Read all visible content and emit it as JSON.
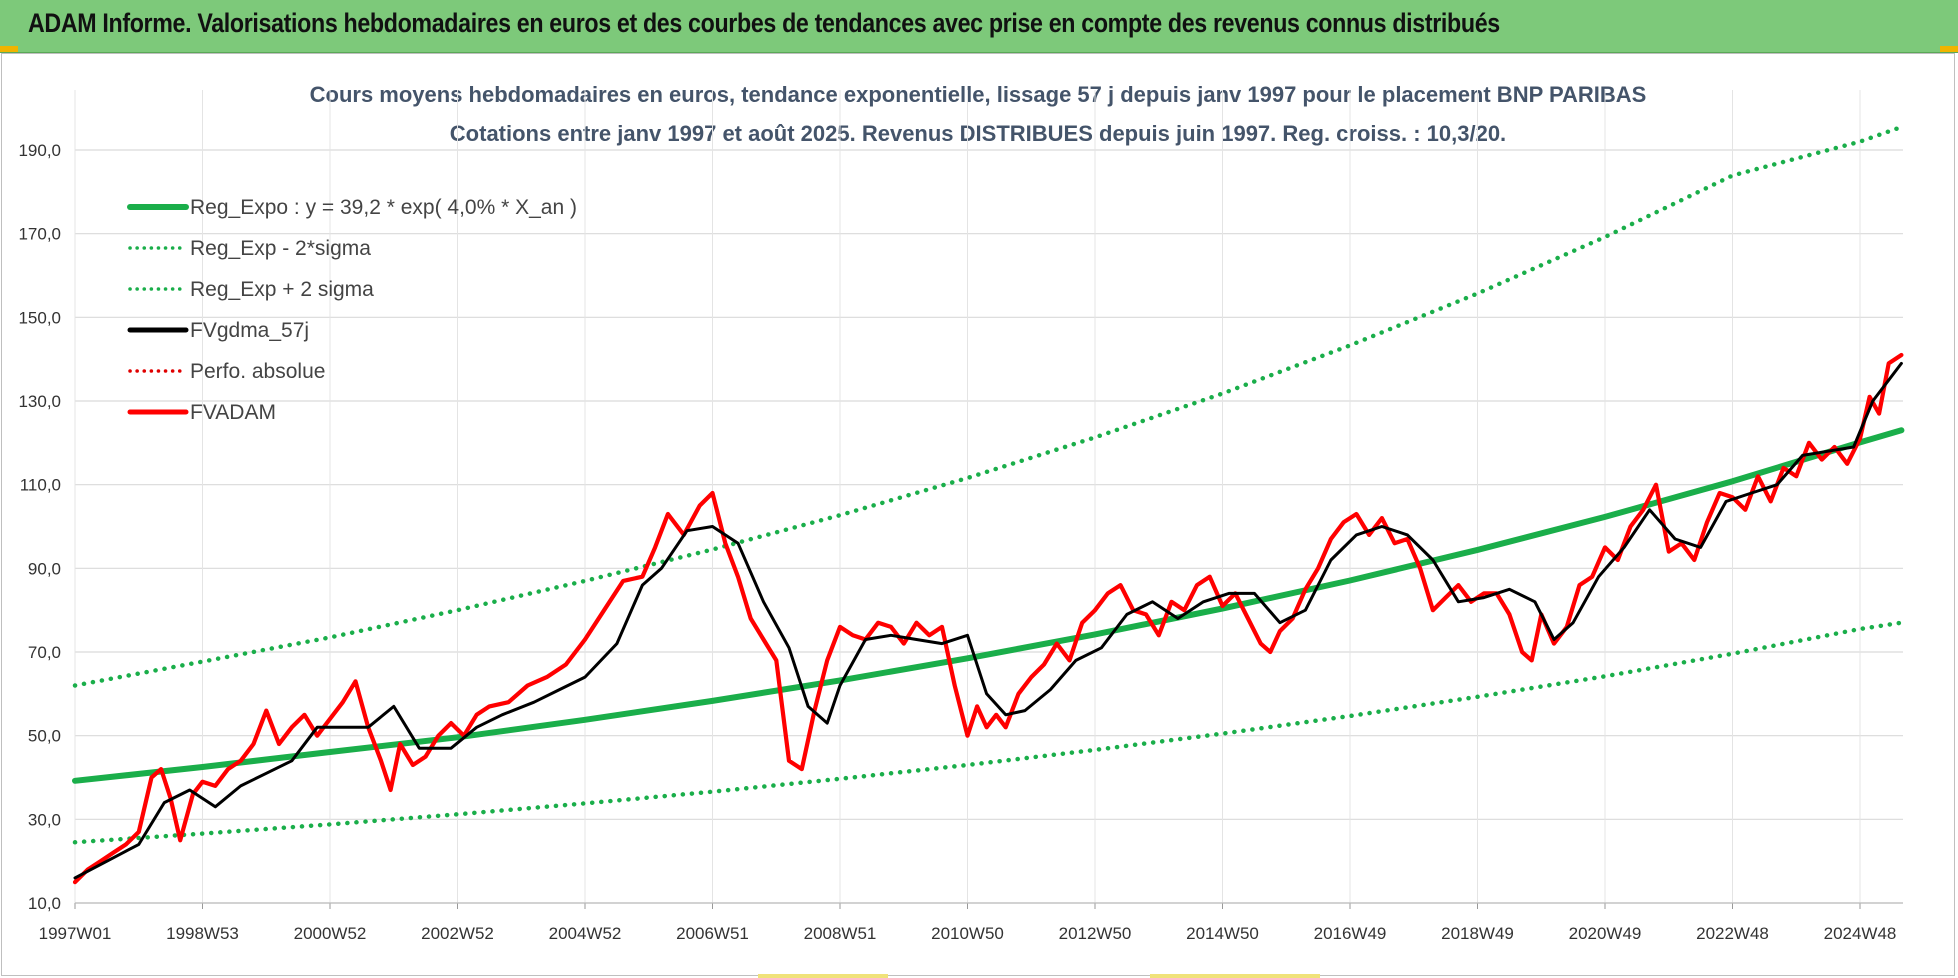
{
  "header": {
    "title": "ADAM Informe. Valorisations hebdomadaires en euros et des courbes de tendances avec prise en compte des revenus connus distribués",
    "band_color": "#7dc97a"
  },
  "chart_data": {
    "type": "line",
    "title": "Cours moyens hebdomadaires en euros, tendance exponentielle, lissage 57 j depuis janv 1997 pour le placement BNP PARIBAS",
    "subtitle": "Cotations entre janv 1997 et août 2025.  Revenus DISTRIBUES depuis juin 1997.  Reg. croiss. : 10,3/20.",
    "xlabel": "",
    "ylabel": "",
    "xlim": [
      1997.0,
      2025.65
    ],
    "ylim": [
      10,
      196
    ],
    "yticks": [
      10,
      30,
      50,
      70,
      90,
      110,
      130,
      150,
      170,
      190
    ],
    "ytick_labels": [
      "10,0",
      "30,0",
      "50,0",
      "70,0",
      "90,0",
      "110,0",
      "130,0",
      "150,0",
      "170,0",
      "190,0"
    ],
    "xticks": [
      1997.0,
      1999.0,
      2001.0,
      2003.0,
      2005.0,
      2007.0,
      2009.0,
      2011.0,
      2013.0,
      2015.0,
      2017.0,
      2019.0,
      2021.0,
      2023.0,
      2025.0
    ],
    "xtick_labels": [
      "1997W01",
      "1998W53",
      "2000W52",
      "2002W52",
      "2004W52",
      "2006W51",
      "2008W51",
      "2010W50",
      "2012W50",
      "2014W50",
      "2016W49",
      "2018W49",
      "2020W49",
      "2022W48",
      "2024W48"
    ],
    "grid": true,
    "legend_position": "top-left",
    "series": [
      {
        "name": "Reg_Expo : y = 39,2 * exp( 4,0% *  X_an )",
        "color": "#1aae4a",
        "style": "solid",
        "x": [
          1997.0,
          1999.0,
          2001.0,
          2003.0,
          2005.0,
          2007.0,
          2009.0,
          2011.0,
          2013.0,
          2015.0,
          2017.0,
          2019.0,
          2021.0,
          2023.0,
          2025.0,
          2025.65
        ],
        "values": [
          39.2,
          42.5,
          46.1,
          49.6,
          53.8,
          58.3,
          63.2,
          68.5,
          74.2,
          80.4,
          87.1,
          94.4,
          102.3,
          110.8,
          120.1,
          123.0
        ]
      },
      {
        "name": "Reg_Exp - 2*sigma",
        "color": "#1aae4a",
        "style": "dotted",
        "x": [
          1997.0,
          1999.0,
          2001.0,
          2003.0,
          2005.0,
          2007.0,
          2009.0,
          2011.0,
          2013.0,
          2015.0,
          2017.0,
          2019.0,
          2021.0,
          2023.0,
          2025.0,
          2025.65
        ],
        "values": [
          24.5,
          26.6,
          28.8,
          31.2,
          33.8,
          36.6,
          39.7,
          43.0,
          46.6,
          50.5,
          54.7,
          59.3,
          64.2,
          69.6,
          75.5,
          77.0
        ]
      },
      {
        "name": "Reg_Exp + 2 sigma",
        "color": "#1aae4a",
        "style": "dotted",
        "x": [
          1997.0,
          1999.0,
          2001.0,
          2003.0,
          2005.0,
          2007.0,
          2009.0,
          2011.0,
          2013.0,
          2015.0,
          2017.0,
          2019.0,
          2021.0,
          2023.0,
          2025.0,
          2025.65
        ],
        "values": [
          62.0,
          67.7,
          73.5,
          80.0,
          87.0,
          94.5,
          102.7,
          111.6,
          121.3,
          131.8,
          143.3,
          155.7,
          169.2,
          183.9,
          192.0,
          195.5
        ]
      },
      {
        "name": "FVgdma_57j",
        "color": "#000000",
        "style": "solid",
        "x": [
          1997.0,
          1997.5,
          1998.0,
          1998.4,
          1998.8,
          1999.2,
          1999.6,
          2000.0,
          2000.4,
          2000.8,
          2001.2,
          2001.6,
          2002.0,
          2002.4,
          2002.9,
          2003.3,
          2003.7,
          2004.2,
          2004.6,
          2005.0,
          2005.5,
          2005.9,
          2006.2,
          2006.6,
          2007.0,
          2007.4,
          2007.8,
          2008.2,
          2008.5,
          2008.8,
          2009.0,
          2009.4,
          2009.8,
          2010.2,
          2010.6,
          2011.0,
          2011.3,
          2011.6,
          2011.9,
          2012.3,
          2012.7,
          2013.1,
          2013.5,
          2013.9,
          2014.3,
          2014.7,
          2015.1,
          2015.5,
          2015.9,
          2016.3,
          2016.7,
          2017.1,
          2017.5,
          2017.9,
          2018.3,
          2018.7,
          2019.1,
          2019.5,
          2019.9,
          2020.2,
          2020.5,
          2020.9,
          2021.3,
          2021.7,
          2022.1,
          2022.5,
          2022.9,
          2023.3,
          2023.7,
          2024.1,
          2024.5,
          2024.9,
          2025.2,
          2025.65
        ],
        "values": [
          16.0,
          20.0,
          24.0,
          34.0,
          37.0,
          33.0,
          38.0,
          41.0,
          44.0,
          52.0,
          52.0,
          52.0,
          57.0,
          47.0,
          47.0,
          52.0,
          55.0,
          58.0,
          61.0,
          64.0,
          72.0,
          86.0,
          90.0,
          99.0,
          100.0,
          96.0,
          82.0,
          71.0,
          57.0,
          53.0,
          62.0,
          73.0,
          74.0,
          73.0,
          72.0,
          74.0,
          60.0,
          55.0,
          56.0,
          61.0,
          68.0,
          71.0,
          79.0,
          82.0,
          78.0,
          82.0,
          84.0,
          84.0,
          77.0,
          80.0,
          92.0,
          98.0,
          100.0,
          98.0,
          92.0,
          82.0,
          83.0,
          85.0,
          82.0,
          73.0,
          77.0,
          88.0,
          95.0,
          104.0,
          97.0,
          95.0,
          106.0,
          108.0,
          110.0,
          117.0,
          118.0,
          119.0,
          130.0,
          139.0
        ]
      },
      {
        "name": "Perfo. absolue",
        "color": "#e00000",
        "style": "dotted",
        "x": [],
        "values": []
      },
      {
        "name": "FVADAM",
        "color": "#ff0000",
        "style": "solid",
        "x": [
          1997.0,
          1997.2,
          1997.4,
          1997.6,
          1997.8,
          1998.0,
          1998.2,
          1998.35,
          1998.5,
          1998.65,
          1998.85,
          1999.0,
          1999.2,
          1999.4,
          1999.6,
          1999.8,
          2000.0,
          2000.2,
          2000.4,
          2000.6,
          2000.8,
          2001.0,
          2001.2,
          2001.4,
          2001.6,
          2001.8,
          2001.95,
          2002.1,
          2002.3,
          2002.5,
          2002.7,
          2002.9,
          2003.1,
          2003.3,
          2003.5,
          2003.8,
          2004.1,
          2004.4,
          2004.7,
          2005.0,
          2005.3,
          2005.6,
          2005.9,
          2006.1,
          2006.3,
          2006.55,
          2006.8,
          2007.0,
          2007.2,
          2007.4,
          2007.6,
          2007.8,
          2008.0,
          2008.2,
          2008.4,
          2008.6,
          2008.8,
          2009.0,
          2009.2,
          2009.4,
          2009.6,
          2009.8,
          2010.0,
          2010.2,
          2010.4,
          2010.6,
          2010.8,
          2011.0,
          2011.15,
          2011.3,
          2011.45,
          2011.6,
          2011.8,
          2012.0,
          2012.2,
          2012.4,
          2012.6,
          2012.8,
          2013.0,
          2013.2,
          2013.4,
          2013.6,
          2013.8,
          2014.0,
          2014.2,
          2014.4,
          2014.6,
          2014.8,
          2015.0,
          2015.2,
          2015.4,
          2015.6,
          2015.75,
          2015.9,
          2016.1,
          2016.3,
          2016.5,
          2016.7,
          2016.9,
          2017.1,
          2017.3,
          2017.5,
          2017.7,
          2017.9,
          2018.1,
          2018.3,
          2018.5,
          2018.7,
          2018.9,
          2019.1,
          2019.3,
          2019.5,
          2019.7,
          2019.85,
          2020.0,
          2020.2,
          2020.4,
          2020.6,
          2020.8,
          2021.0,
          2021.2,
          2021.4,
          2021.6,
          2021.8,
          2022.0,
          2022.2,
          2022.4,
          2022.6,
          2022.8,
          2023.0,
          2023.2,
          2023.4,
          2023.6,
          2023.8,
          2024.0,
          2024.2,
          2024.4,
          2024.6,
          2024.8,
          2025.0,
          2025.15,
          2025.3,
          2025.45,
          2025.65
        ],
        "values": [
          15.0,
          18.0,
          20.0,
          22.0,
          24.0,
          27.0,
          40.0,
          42.0,
          35.0,
          25.0,
          36.0,
          39.0,
          38.0,
          42.0,
          44.0,
          48.0,
          56.0,
          48.0,
          52.0,
          55.0,
          50.0,
          54.0,
          58.0,
          63.0,
          52.0,
          44.0,
          37.0,
          48.0,
          43.0,
          45.0,
          50.0,
          53.0,
          50.0,
          55.0,
          57.0,
          58.0,
          62.0,
          64.0,
          67.0,
          73.0,
          80.0,
          87.0,
          88.0,
          95.0,
          103.0,
          98.0,
          105.0,
          108.0,
          96.0,
          88.0,
          78.0,
          73.0,
          68.0,
          44.0,
          42.0,
          56.0,
          68.0,
          76.0,
          74.0,
          73.0,
          77.0,
          76.0,
          72.0,
          77.0,
          74.0,
          76.0,
          62.0,
          50.0,
          57.0,
          52.0,
          55.0,
          52.0,
          60.0,
          64.0,
          67.0,
          72.0,
          68.0,
          77.0,
          80.0,
          84.0,
          86.0,
          80.0,
          79.0,
          74.0,
          82.0,
          80.0,
          86.0,
          88.0,
          81.0,
          84.0,
          78.0,
          72.0,
          70.0,
          75.0,
          78.0,
          85.0,
          90.0,
          97.0,
          101.0,
          103.0,
          98.0,
          102.0,
          96.0,
          97.0,
          90.0,
          80.0,
          83.0,
          86.0,
          82.0,
          84.0,
          84.0,
          79.0,
          70.0,
          68.0,
          79.0,
          72.0,
          76.0,
          86.0,
          88.0,
          95.0,
          92.0,
          100.0,
          104.0,
          110.0,
          94.0,
          96.0,
          92.0,
          101.0,
          108.0,
          107.0,
          104.0,
          112.0,
          106.0,
          114.0,
          112.0,
          120.0,
          116.0,
          119.0,
          115.0,
          121.0,
          131.0,
          127.0,
          139.0,
          141.0
        ]
      }
    ]
  }
}
